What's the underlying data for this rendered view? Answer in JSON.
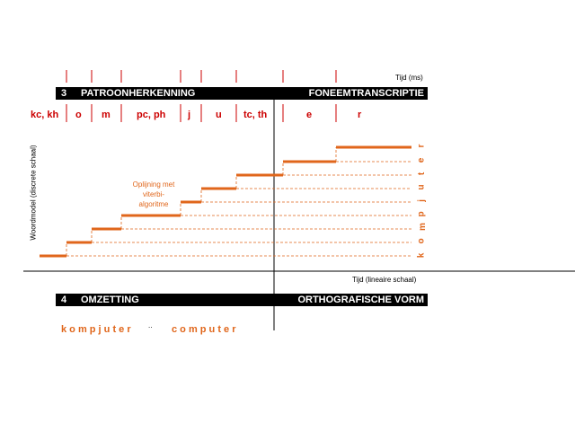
{
  "time_label_ms": "Tijd (ms)",
  "time_label_linear": "Tijd (lineaire schaal)",
  "y_axis_label": "Woordmodel (discrete schaal)",
  "bar3": {
    "number": "3",
    "left_title": "PATROONHERKENNING",
    "right_title": "FONEEMTRANSCRIPTIE"
  },
  "bar4": {
    "number": "4",
    "left_title": "OMZETTING",
    "right_title": "ORTHOGRAFISCHE VORM"
  },
  "phonemes": [
    "kc, kh",
    "o",
    "m",
    "pc, ph",
    "j",
    "u",
    "tc, th",
    "e",
    "r"
  ],
  "annotation": [
    "Oplijning met",
    "viterbi-",
    "algoritme"
  ],
  "word_model": [
    "k",
    "o",
    "m",
    "p",
    "j",
    "u",
    "t",
    "e",
    "r"
  ],
  "result_phonetic": "k o m p j u t e r",
  "result_connector": "..",
  "result_orthographic": "c o m p u t e r",
  "colors": {
    "accent": "#e0661b",
    "phoneme_red": "#cc0000",
    "bar_bg": "#000000"
  }
}
